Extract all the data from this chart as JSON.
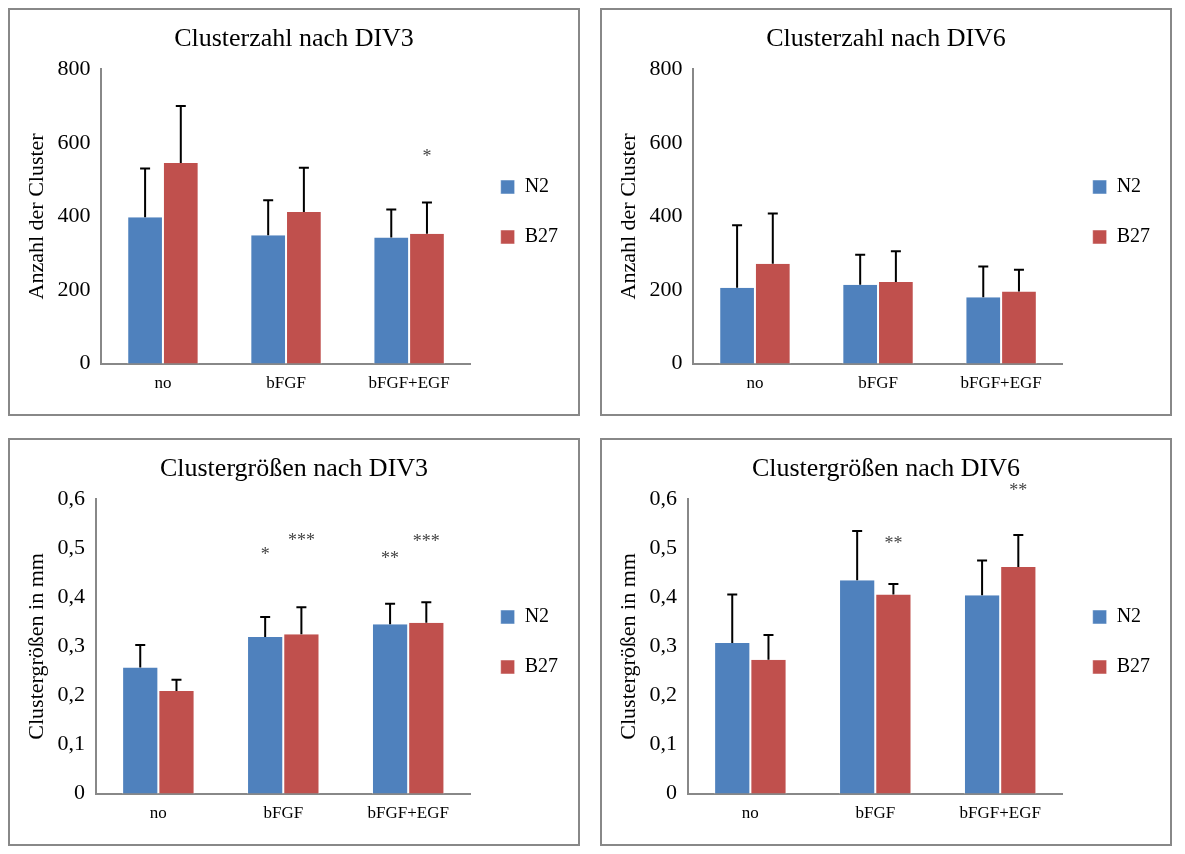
{
  "chart_data": [
    {
      "type": "bar",
      "title": "Clusterzahl nach DIV3",
      "ylabel": "Anzahl der Cluster",
      "categories": [
        "no",
        "bFGF",
        "bFGF+EGF"
      ],
      "ylim": [
        0,
        800
      ],
      "yticks": [
        0,
        200,
        400,
        600,
        800
      ],
      "grid": false,
      "legend": "right",
      "series": [
        {
          "name": "N2",
          "color": "#4f81bd",
          "values": [
            398,
            349,
            343
          ],
          "errors": [
            [
              398,
              530
            ],
            [
              349,
              444
            ],
            [
              343,
              419
            ]
          ]
        },
        {
          "name": "B27",
          "color": "#c0504d",
          "values": [
            545,
            412,
            353
          ],
          "errors": [
            [
              545,
              700
            ],
            [
              412,
              532
            ],
            [
              353,
              438
            ]
          ]
        }
      ],
      "annotations": [
        "*"
      ]
    },
    {
      "type": "bar",
      "title": "Clusterzahl nach DIV6",
      "ylabel": "Anzahl der Cluster",
      "categories": [
        "no",
        "bFGF",
        "bFGF+EGF"
      ],
      "ylim": [
        0,
        800
      ],
      "yticks": [
        0,
        200,
        400,
        600,
        800
      ],
      "grid": false,
      "legend": "right",
      "series": [
        {
          "name": "N2",
          "color": "#4f81bd",
          "values": [
            206,
            214,
            180
          ],
          "errors": [
            [
              206,
              376
            ],
            [
              214,
              296
            ],
            [
              180,
              264
            ]
          ]
        },
        {
          "name": "B27",
          "color": "#c0504d",
          "values": [
            271,
            222,
            196
          ],
          "errors": [
            [
              271,
              408
            ],
            [
              222,
              305
            ],
            [
              196,
              255
            ]
          ]
        }
      ]
    },
    {
      "type": "bar",
      "title": "Clustergrößen nach DIV3",
      "ylabel": "Clustergrößen in mm",
      "categories": [
        "no",
        "bFGF",
        "bFGF+EGF"
      ],
      "ylim": [
        0,
        0.6
      ],
      "yticks": [
        {
          "value": 0,
          "label": "0"
        },
        {
          "value": 0.1,
          "label": "0,1"
        },
        {
          "value": 0.2,
          "label": "0,2"
        },
        {
          "value": 0.3,
          "label": "0,3"
        },
        {
          "value": 0.4,
          "label": "0,4"
        },
        {
          "value": 0.5,
          "label": "0,5"
        },
        {
          "value": 0.6,
          "label": "0,6"
        }
      ],
      "grid": false,
      "legend": "right",
      "series": [
        {
          "name": "N2",
          "color": "#4f81bd",
          "values": [
            0.257,
            0.319,
            0.345
          ],
          "errors": [
            [
              0.257,
              0.303
            ],
            [
              0.319,
              0.36
            ],
            [
              0.345,
              0.387
            ]
          ]
        },
        {
          "name": "B27",
          "color": "#c0504d",
          "values": [
            0.209,
            0.325,
            0.348
          ],
          "errors": [
            [
              0.209,
              0.232
            ],
            [
              0.325,
              0.38
            ],
            [
              0.348,
              0.39
            ]
          ]
        }
      ],
      "annotations": [
        "*",
        "***",
        "**",
        "***"
      ]
    },
    {
      "type": "bar",
      "title": "Clustergrößen nach DIV6",
      "ylabel": "Clustergrößen in mm",
      "categories": [
        "no",
        "bFGF",
        "bFGF+EGF"
      ],
      "ylim": [
        0,
        0.6
      ],
      "yticks": [
        {
          "value": 0,
          "label": "0"
        },
        {
          "value": 0.1,
          "label": "0,1"
        },
        {
          "value": 0.2,
          "label": "0,2"
        },
        {
          "value": 0.3,
          "label": "0,3"
        },
        {
          "value": 0.4,
          "label": "0,4"
        },
        {
          "value": 0.5,
          "label": "0,5"
        },
        {
          "value": 0.6,
          "label": "0,6"
        }
      ],
      "grid": false,
      "legend": "right",
      "series": [
        {
          "name": "N2",
          "color": "#4f81bd",
          "values": [
            0.307,
            0.435,
            0.404
          ],
          "errors": [
            [
              0.307,
              0.406
            ],
            [
              0.435,
              0.535
            ],
            [
              0.404,
              0.475
            ]
          ]
        },
        {
          "name": "B27",
          "color": "#c0504d",
          "values": [
            0.273,
            0.406,
            0.462
          ],
          "errors": [
            [
              0.273,
              0.323
            ],
            [
              0.406,
              0.427
            ],
            [
              0.462,
              0.527
            ]
          ]
        }
      ],
      "annotations": [
        "**",
        "**"
      ]
    }
  ]
}
